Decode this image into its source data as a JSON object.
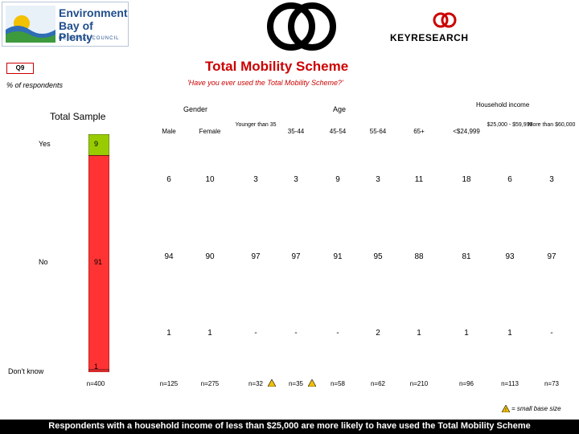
{
  "header": {
    "org_line1": "Environment",
    "org_line2": "Bay of Plenty",
    "org_line3": "REGIONAL COUNCIL",
    "brand": "KEYRESEARCH"
  },
  "question_code": "Q9",
  "title": "Total Mobility Scheme",
  "subtitle": "'Have you ever used the Total Mobility Scheme?'",
  "percent_label": "% of respondents",
  "group_labels": {
    "gender": "Gender",
    "age": "Age",
    "income": "Household income"
  },
  "legend_text": "= small base size",
  "footer": "Respondents with a household income of less than $25,000 are more likely to have used the Total Mobility Scheme",
  "colors": {
    "yes": "#99cc00",
    "no": "#ff3333",
    "dont_know": "#ff3333",
    "title": "#cc0000"
  },
  "chart_data": {
    "type": "table",
    "title": "Total Mobility Scheme",
    "total_sample": {
      "label": "Total Sample",
      "categories": [
        "Yes",
        "No",
        "Don't know"
      ],
      "values": [
        9,
        91,
        1
      ],
      "base": "n=400"
    },
    "columns": [
      {
        "label": "Male",
        "values": [
          "6",
          "94",
          "1"
        ],
        "base": "n=125",
        "small_base": false
      },
      {
        "label": "Female",
        "values": [
          "10",
          "90",
          "1"
        ],
        "base": "n=275",
        "small_base": false
      },
      {
        "label": "Younger than 35",
        "values": [
          "3",
          "97",
          "-"
        ],
        "base": "n=32",
        "small_base": true
      },
      {
        "label": "35-44",
        "values": [
          "3",
          "97",
          "-"
        ],
        "base": "n=35",
        "small_base": true
      },
      {
        "label": "45-54",
        "values": [
          "9",
          "91",
          "-"
        ],
        "base": "n=58",
        "small_base": false
      },
      {
        "label": "55-64",
        "values": [
          "3",
          "95",
          "2"
        ],
        "base": "n=62",
        "small_base": false
      },
      {
        "label": "65+",
        "values": [
          "11",
          "88",
          "1"
        ],
        "base": "n=210",
        "small_base": false
      },
      {
        "label": "<$24,999",
        "values": [
          "18",
          "81",
          "1"
        ],
        "base": "n=96",
        "small_base": false
      },
      {
        "label": "$25,000 - $59,999",
        "values": [
          "6",
          "93",
          "1"
        ],
        "base": "n=113",
        "small_base": false
      },
      {
        "label": "More than $60,000",
        "values": [
          "3",
          "97",
          "-"
        ],
        "base": "n=73",
        "small_base": false
      }
    ]
  }
}
